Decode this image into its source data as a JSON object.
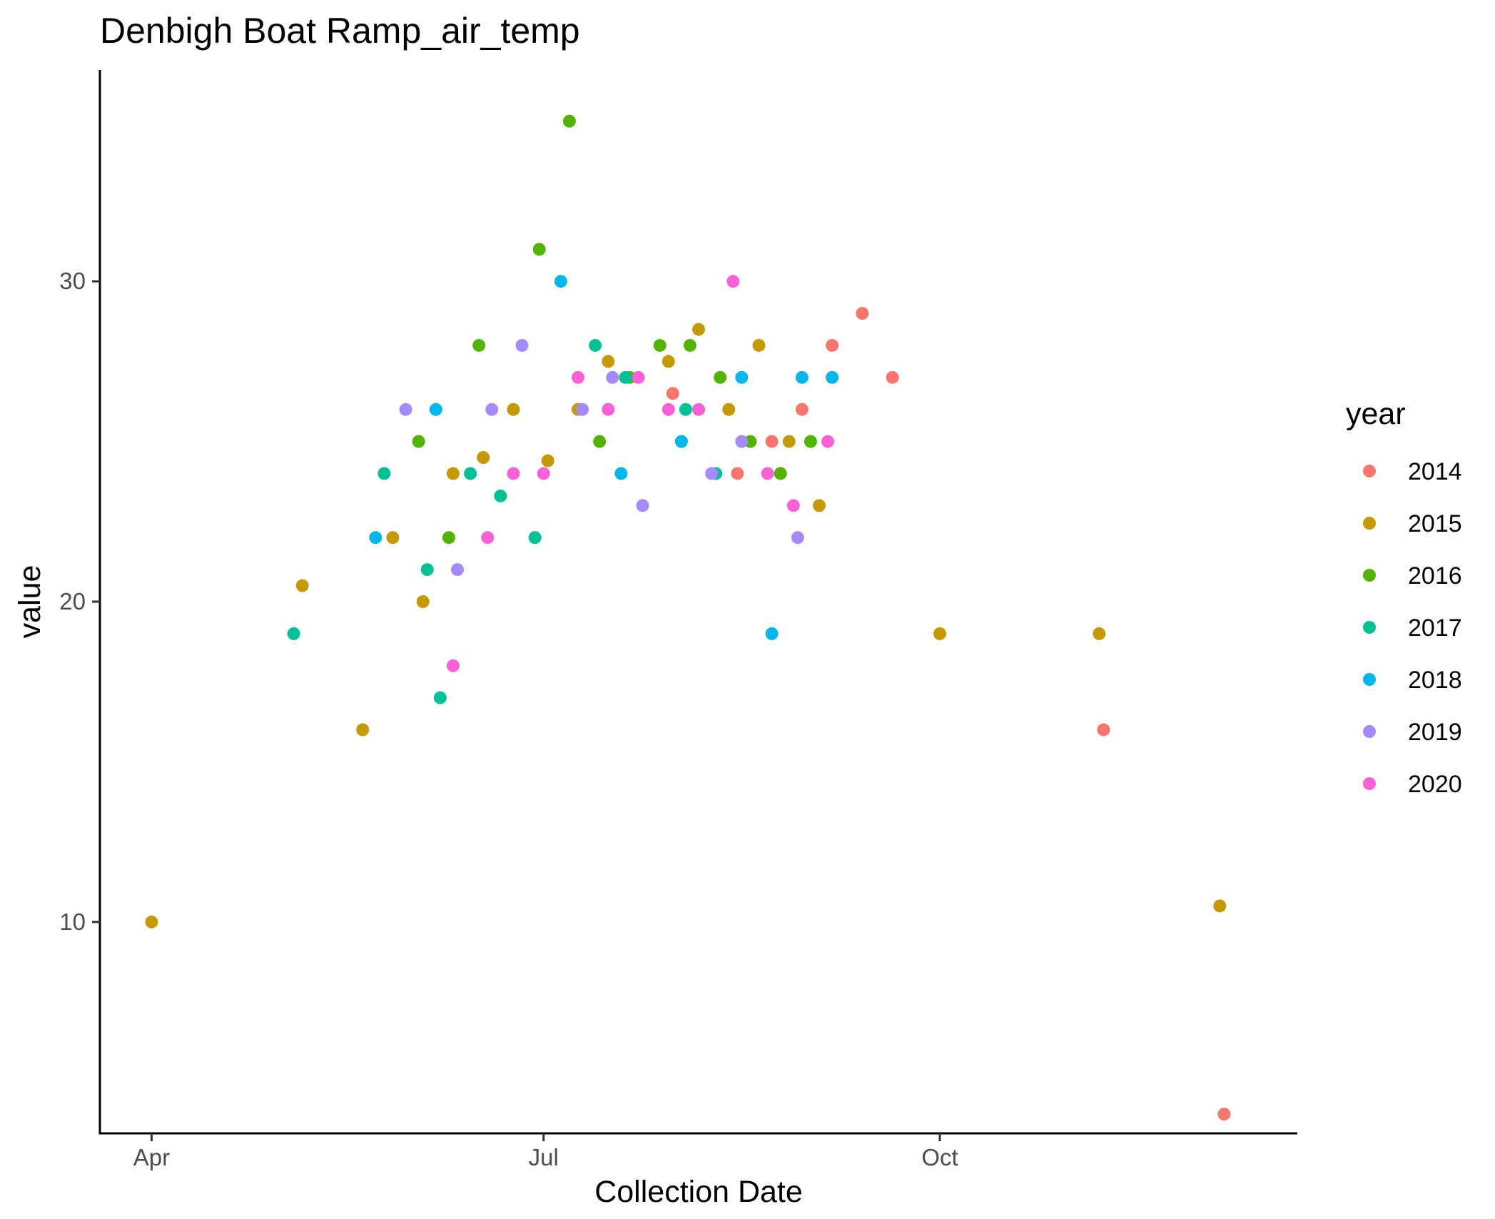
{
  "chart_data": {
    "type": "scatter",
    "title": "Denbigh Boat Ramp_air_temp",
    "xlabel": "Collection Date",
    "ylabel": "value",
    "x_ticks": [
      {
        "label": "Apr",
        "value": "04-01"
      },
      {
        "label": "Jul",
        "value": "07-01"
      },
      {
        "label": "Oct",
        "value": "10-01"
      }
    ],
    "y_ticks": [
      10,
      20,
      30
    ],
    "xlim": [
      "03-20",
      "12-23"
    ],
    "ylim": [
      3.4,
      36.6
    ],
    "grid": false,
    "legend": {
      "title": "year",
      "position": "right"
    },
    "series": [
      {
        "name": "2014",
        "color": "#F8766D",
        "points": [
          {
            "x": "07-31",
            "y": 26.5
          },
          {
            "x": "08-15",
            "y": 24
          },
          {
            "x": "08-23",
            "y": 25
          },
          {
            "x": "08-30",
            "y": 26
          },
          {
            "x": "09-06",
            "y": 28
          },
          {
            "x": "09-13",
            "y": 29
          },
          {
            "x": "09-20",
            "y": 27
          },
          {
            "x": "11-08",
            "y": 16
          },
          {
            "x": "12-06",
            "y": 4
          }
        ]
      },
      {
        "name": "2015",
        "color": "#C49A00",
        "points": [
          {
            "x": "04-01",
            "y": 10
          },
          {
            "x": "05-06",
            "y": 20.5
          },
          {
            "x": "05-20",
            "y": 16
          },
          {
            "x": "05-27",
            "y": 22
          },
          {
            "x": "06-03",
            "y": 20
          },
          {
            "x": "06-10",
            "y": 24
          },
          {
            "x": "06-17",
            "y": 24.5
          },
          {
            "x": "06-24",
            "y": 26
          },
          {
            "x": "07-02",
            "y": 24.4
          },
          {
            "x": "07-09",
            "y": 26
          },
          {
            "x": "07-16",
            "y": 27.5
          },
          {
            "x": "07-30",
            "y": 27.5
          },
          {
            "x": "08-06",
            "y": 28.5
          },
          {
            "x": "08-13",
            "y": 26
          },
          {
            "x": "08-20",
            "y": 28
          },
          {
            "x": "08-27",
            "y": 25
          },
          {
            "x": "09-03",
            "y": 23
          },
          {
            "x": "10-01",
            "y": 19
          },
          {
            "x": "11-07",
            "y": 19
          },
          {
            "x": "12-05",
            "y": 10.5
          }
        ]
      },
      {
        "name": "2016",
        "color": "#53B400",
        "points": [
          {
            "x": "06-02",
            "y": 25
          },
          {
            "x": "06-09",
            "y": 22
          },
          {
            "x": "06-16",
            "y": 28
          },
          {
            "x": "06-30",
            "y": 31
          },
          {
            "x": "07-07",
            "y": 35
          },
          {
            "x": "07-14",
            "y": 25
          },
          {
            "x": "07-21",
            "y": 27
          },
          {
            "x": "07-28",
            "y": 28
          },
          {
            "x": "08-04",
            "y": 28
          },
          {
            "x": "08-11",
            "y": 27
          },
          {
            "x": "08-18",
            "y": 25
          },
          {
            "x": "08-25",
            "y": 24
          },
          {
            "x": "09-01",
            "y": 25
          }
        ]
      },
      {
        "name": "2017",
        "color": "#00C094",
        "points": [
          {
            "x": "05-04",
            "y": 19
          },
          {
            "x": "05-25",
            "y": 24
          },
          {
            "x": "06-04",
            "y": 21
          },
          {
            "x": "06-07",
            "y": 17
          },
          {
            "x": "06-14",
            "y": 24
          },
          {
            "x": "06-21",
            "y": 23.3
          },
          {
            "x": "06-29",
            "y": 22
          },
          {
            "x": "07-13",
            "y": 28
          },
          {
            "x": "07-20",
            "y": 27
          },
          {
            "x": "08-03",
            "y": 26
          },
          {
            "x": "08-10",
            "y": 24
          }
        ]
      },
      {
        "name": "2018",
        "color": "#00B6EB",
        "points": [
          {
            "x": "05-23",
            "y": 22
          },
          {
            "x": "06-06",
            "y": 26
          },
          {
            "x": "07-05",
            "y": 30
          },
          {
            "x": "07-19",
            "y": 24
          },
          {
            "x": "08-02",
            "y": 25
          },
          {
            "x": "08-16",
            "y": 27
          },
          {
            "x": "08-23",
            "y": 19
          },
          {
            "x": "08-30",
            "y": 27
          },
          {
            "x": "09-06",
            "y": 27
          }
        ]
      },
      {
        "name": "2019",
        "color": "#A58AFF",
        "points": [
          {
            "x": "05-30",
            "y": 26
          },
          {
            "x": "06-11",
            "y": 21
          },
          {
            "x": "06-19",
            "y": 26
          },
          {
            "x": "06-26",
            "y": 28
          },
          {
            "x": "07-10",
            "y": 26
          },
          {
            "x": "07-17",
            "y": 27
          },
          {
            "x": "07-24",
            "y": 23
          },
          {
            "x": "08-09",
            "y": 24
          },
          {
            "x": "08-16",
            "y": 25
          },
          {
            "x": "08-29",
            "y": 22
          }
        ]
      },
      {
        "name": "2020",
        "color": "#FB61D7",
        "points": [
          {
            "x": "06-10",
            "y": 18
          },
          {
            "x": "06-18",
            "y": 22
          },
          {
            "x": "06-24",
            "y": 24
          },
          {
            "x": "07-01",
            "y": 24
          },
          {
            "x": "07-09",
            "y": 27
          },
          {
            "x": "07-16",
            "y": 26
          },
          {
            "x": "07-23",
            "y": 27
          },
          {
            "x": "07-30",
            "y": 26
          },
          {
            "x": "08-06",
            "y": 26
          },
          {
            "x": "08-14",
            "y": 30
          },
          {
            "x": "08-22",
            "y": 24
          },
          {
            "x": "08-28",
            "y": 23
          },
          {
            "x": "09-05",
            "y": 25
          }
        ]
      }
    ]
  }
}
